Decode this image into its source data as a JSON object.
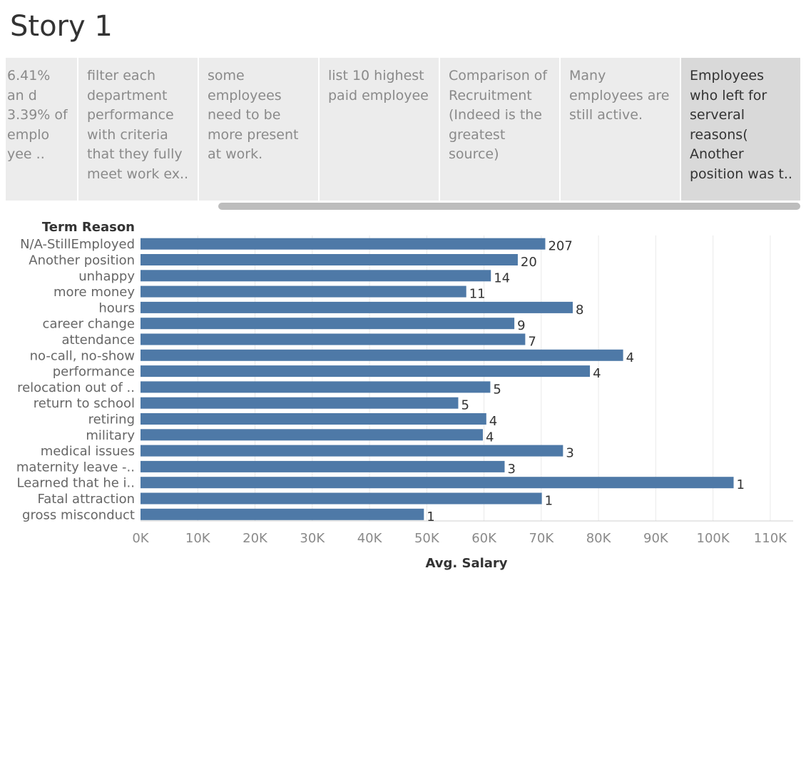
{
  "story": {
    "title": "Story 1"
  },
  "nav": [
    {
      "label": "6.41% an d 3.39% of emplo yee ..",
      "active": false
    },
    {
      "label": "filter each department performance with criteria that they fully meet work ex..",
      "active": false
    },
    {
      "label": "some employees need to be more present at work.",
      "active": false
    },
    {
      "label": "list 10 highest paid employee",
      "active": false
    },
    {
      "label": "Comparison of Recruitment (Indeed is the greatest source)",
      "active": false
    },
    {
      "label": "Many employees are still active.",
      "active": false
    },
    {
      "label": "Employees who left for serveral reasons( Another position was t..",
      "active": true
    }
  ],
  "colors": {
    "bar": "#4e79a7",
    "grid": "#e9e9e9"
  },
  "chart_data": {
    "type": "bar",
    "orientation": "horizontal",
    "row_header": "Term Reason",
    "xlabel": "Avg. Salary",
    "xlim": [
      0,
      114000
    ],
    "xticks": [
      0,
      10000,
      20000,
      30000,
      40000,
      50000,
      60000,
      70000,
      80000,
      90000,
      100000,
      110000
    ],
    "xtick_labels": [
      "0K",
      "10K",
      "20K",
      "30K",
      "40K",
      "50K",
      "60K",
      "70K",
      "80K",
      "90K",
      "100K",
      "110K"
    ],
    "categories": [
      "N/A-StillEmployed",
      "Another position",
      "unhappy",
      "more money",
      "hours",
      "career change",
      "attendance",
      "no-call, no-show",
      "performance",
      "relocation out of ..",
      "return to school",
      "retiring",
      "military",
      "medical issues",
      "maternity leave -..",
      "Learned that he i..",
      "Fatal attraction",
      "gross misconduct"
    ],
    "values": [
      70700,
      65900,
      61200,
      56900,
      75500,
      65300,
      67200,
      84300,
      78500,
      61100,
      55500,
      60400,
      59800,
      73800,
      63600,
      103600,
      70100,
      49500
    ],
    "labels": [
      "207",
      "20",
      "14",
      "11",
      "8",
      "9",
      "7",
      "4",
      "4",
      "5",
      "5",
      "4",
      "4",
      "3",
      "3",
      "1",
      "1",
      "1"
    ]
  }
}
